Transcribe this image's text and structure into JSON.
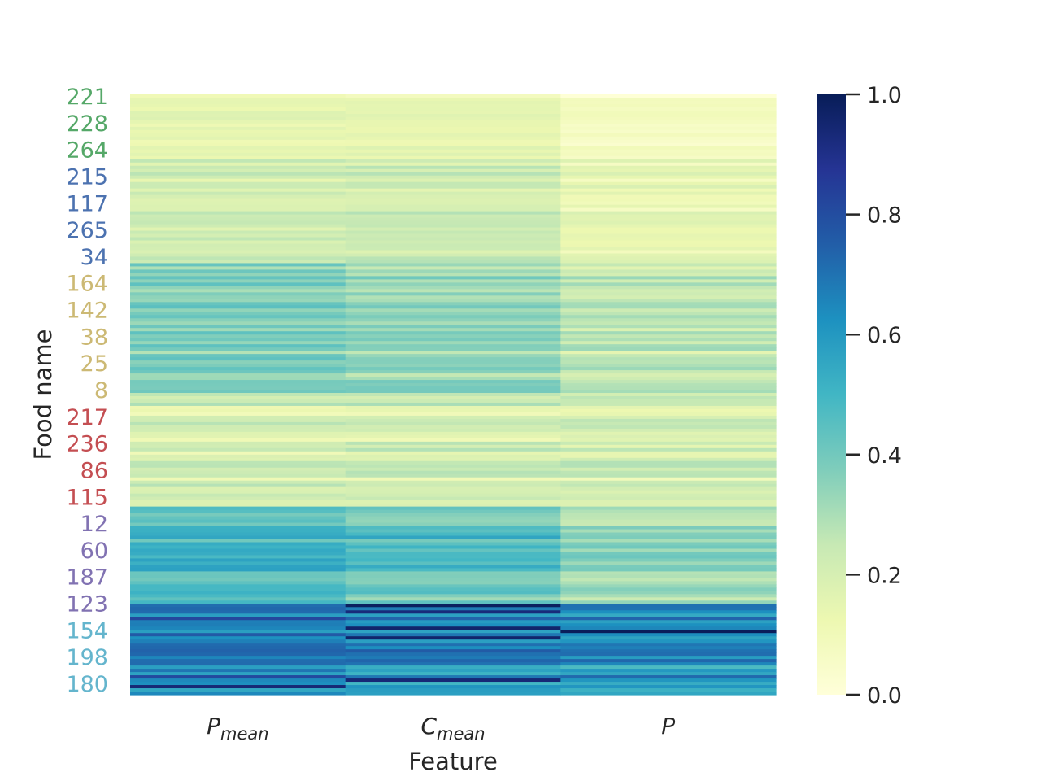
{
  "chart_data": {
    "type": "heatmap",
    "title": "",
    "xlabel": "Feature",
    "ylabel": "Food name",
    "columns": [
      {
        "base": "P",
        "sub": "mean"
      },
      {
        "base": "C",
        "sub": "mean"
      },
      {
        "base": "P",
        "sub": ""
      }
    ],
    "colorbar": {
      "range": [
        0.0,
        1.0
      ],
      "ticks": [
        "0.0",
        "0.2",
        "0.4",
        "0.6",
        "0.8",
        "1.0"
      ],
      "colormap": "YlGnBu"
    },
    "y_tick_labels": [
      {
        "label": "221",
        "group": 0
      },
      {
        "label": "228",
        "group": 0
      },
      {
        "label": "264",
        "group": 0
      },
      {
        "label": "215",
        "group": 1
      },
      {
        "label": "117",
        "group": 1
      },
      {
        "label": "265",
        "group": 1
      },
      {
        "label": "34",
        "group": 1
      },
      {
        "label": "164",
        "group": 2
      },
      {
        "label": "142",
        "group": 2
      },
      {
        "label": "38",
        "group": 2
      },
      {
        "label": "25",
        "group": 2
      },
      {
        "label": "8",
        "group": 2
      },
      {
        "label": "217",
        "group": 3
      },
      {
        "label": "236",
        "group": 3
      },
      {
        "label": "86",
        "group": 3
      },
      {
        "label": "115",
        "group": 3
      },
      {
        "label": "12",
        "group": 4
      },
      {
        "label": "60",
        "group": 4
      },
      {
        "label": "187",
        "group": 4
      },
      {
        "label": "123",
        "group": 4
      },
      {
        "label": "154",
        "group": 5
      },
      {
        "label": "198",
        "group": 5
      },
      {
        "label": "180",
        "group": 5
      }
    ],
    "group_colors": [
      "#55a868",
      "#4c72b0",
      "#ccb974",
      "#c44e52",
      "#8172b2",
      "#64b5cd"
    ],
    "row_blocks": [
      {
        "rows": 20,
        "means": [
          0.13,
          0.13,
          0.06
        ]
      },
      {
        "rows": 32,
        "means": [
          0.21,
          0.22,
          0.13
        ]
      },
      {
        "rows": 40,
        "means": [
          0.37,
          0.33,
          0.25
        ]
      },
      {
        "rows": 35,
        "means": [
          0.2,
          0.2,
          0.2
        ]
      },
      {
        "rows": 30,
        "means": [
          0.49,
          0.43,
          0.34
        ]
      },
      {
        "rows": 28,
        "means": [
          0.68,
          0.63,
          0.61
        ]
      }
    ]
  }
}
